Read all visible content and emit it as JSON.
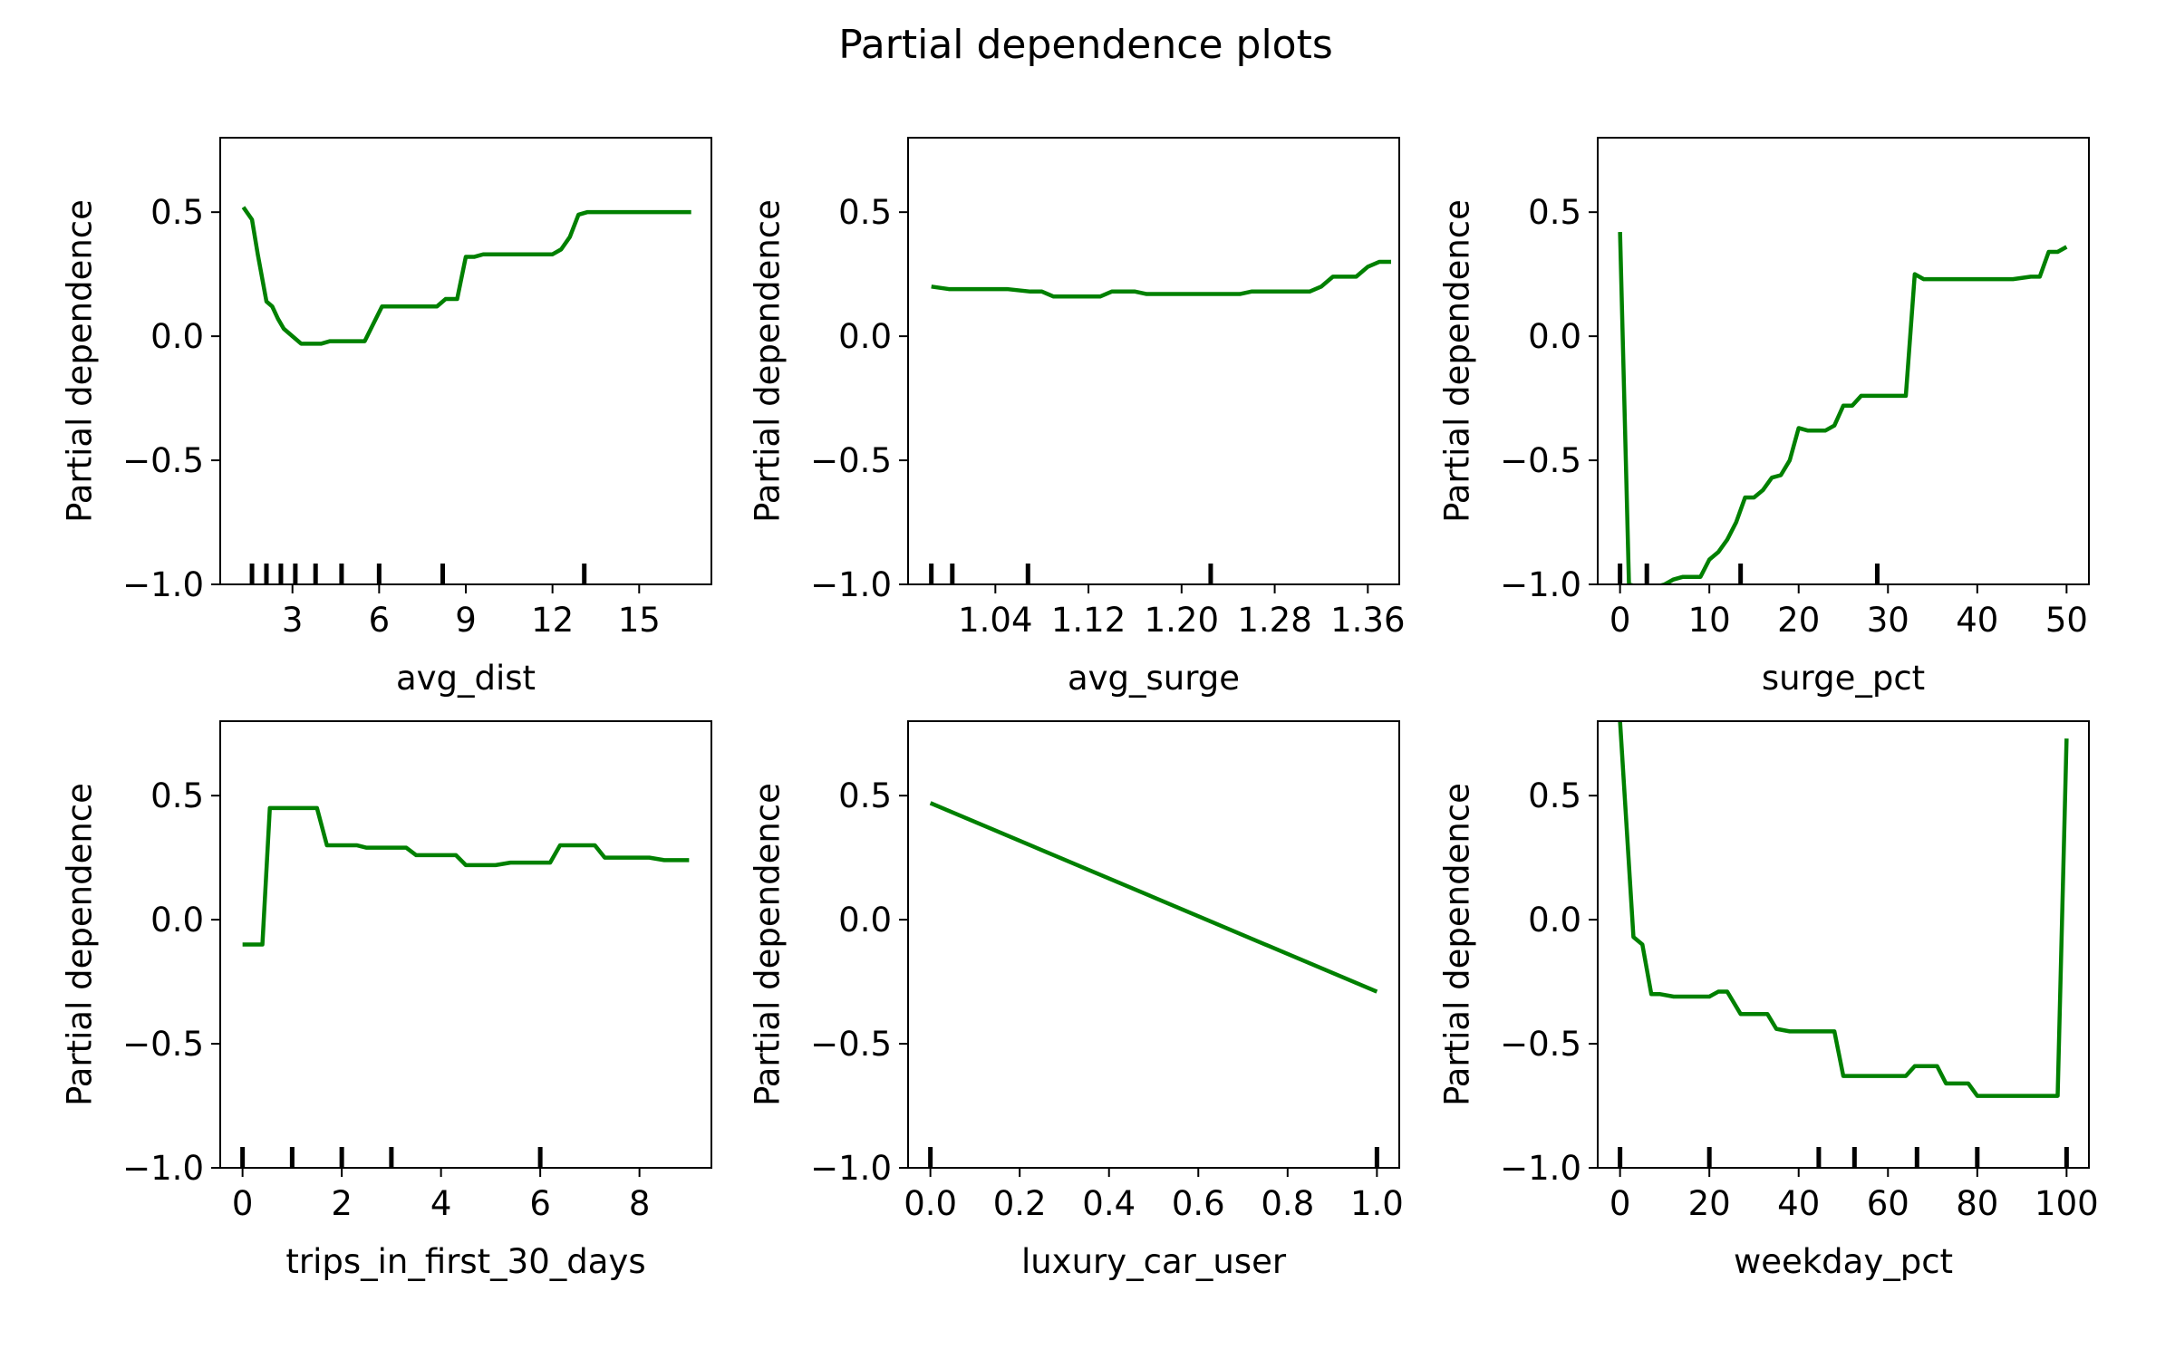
{
  "title": "Partial dependence plots",
  "line_color": "#008000",
  "chart_data": [
    {
      "type": "line",
      "xlabel": "avg_dist",
      "ylabel": "Partial dependence",
      "xlim": [
        0.5,
        17.5
      ],
      "ylim": [
        -1.0,
        0.8
      ],
      "xticks": [
        3,
        6,
        9,
        12,
        15
      ],
      "xtick_labels": [
        "3",
        "6",
        "9",
        "12",
        "15"
      ],
      "yticks": [
        -1.0,
        -0.5,
        0.0,
        0.5
      ],
      "ytick_labels": [
        "−1.0",
        "−0.5",
        "0.0",
        "0.5"
      ],
      "deciles": [
        1.6,
        2.1,
        2.6,
        3.1,
        3.8,
        4.7,
        6.0,
        8.2,
        13.1
      ],
      "x": [
        1.3,
        1.6,
        1.8,
        2.1,
        2.3,
        2.5,
        2.7,
        3.0,
        3.3,
        3.6,
        4.0,
        4.3,
        4.6,
        5.0,
        5.5,
        5.8,
        6.1,
        6.4,
        7.0,
        8.0,
        8.3,
        8.7,
        9.0,
        9.3,
        9.6,
        10.0,
        11.0,
        12.0,
        12.3,
        12.6,
        12.9,
        13.2,
        14.0,
        15.0,
        16.0,
        16.8
      ],
      "y": [
        0.52,
        0.47,
        0.33,
        0.14,
        0.12,
        0.07,
        0.03,
        0.0,
        -0.03,
        -0.03,
        -0.03,
        -0.02,
        -0.02,
        -0.02,
        -0.02,
        0.05,
        0.12,
        0.12,
        0.12,
        0.12,
        0.15,
        0.15,
        0.32,
        0.32,
        0.33,
        0.33,
        0.33,
        0.33,
        0.35,
        0.4,
        0.49,
        0.5,
        0.5,
        0.5,
        0.5,
        0.5
      ]
    },
    {
      "type": "line",
      "xlabel": "avg_surge",
      "ylabel": "Partial dependence",
      "xlim": [
        0.965,
        1.387
      ],
      "ylim": [
        -1.0,
        0.8
      ],
      "xticks": [
        1.04,
        1.12,
        1.2,
        1.28,
        1.36
      ],
      "xtick_labels": [
        "1.04",
        "1.12",
        "1.20",
        "1.28",
        "1.36"
      ],
      "yticks": [
        -1.0,
        -0.5,
        0.0,
        0.5
      ],
      "ytick_labels": [
        "−1.0",
        "−0.5",
        "0.0",
        "0.5"
      ],
      "deciles": [
        0.985,
        1.003,
        1.068,
        1.225
      ],
      "x": [
        0.985,
        1.0,
        1.02,
        1.05,
        1.07,
        1.08,
        1.09,
        1.1,
        1.12,
        1.13,
        1.14,
        1.15,
        1.16,
        1.17,
        1.18,
        1.2,
        1.22,
        1.24,
        1.25,
        1.26,
        1.28,
        1.3,
        1.31,
        1.32,
        1.33,
        1.34,
        1.35,
        1.36,
        1.37,
        1.38
      ],
      "y": [
        0.2,
        0.19,
        0.19,
        0.19,
        0.18,
        0.18,
        0.16,
        0.16,
        0.16,
        0.16,
        0.18,
        0.18,
        0.18,
        0.17,
        0.17,
        0.17,
        0.17,
        0.17,
        0.17,
        0.18,
        0.18,
        0.18,
        0.18,
        0.2,
        0.24,
        0.24,
        0.24,
        0.28,
        0.3,
        0.3
      ]
    },
    {
      "type": "line",
      "xlabel": "surge_pct",
      "ylabel": "Partial dependence",
      "xlim": [
        -2.5,
        52.5
      ],
      "ylim": [
        -1.0,
        0.8
      ],
      "xticks": [
        0,
        10,
        20,
        30,
        40,
        50
      ],
      "xtick_labels": [
        "0",
        "10",
        "20",
        "30",
        "40",
        "50"
      ],
      "yticks": [
        -1.0,
        -0.5,
        0.0,
        0.5
      ],
      "ytick_labels": [
        "−1.0",
        "−0.5",
        "0.0",
        "0.5"
      ],
      "deciles": [
        0.0,
        3.0,
        13.5,
        28.8
      ],
      "x": [
        0.0,
        1.0,
        2.0,
        4.0,
        5.0,
        6.0,
        7.0,
        8.0,
        9.0,
        10.0,
        11.0,
        12.0,
        13.0,
        14.0,
        15.0,
        16.0,
        17.0,
        18.0,
        19.0,
        20.0,
        21.0,
        22.0,
        23.0,
        24.0,
        25.0,
        26.0,
        27.0,
        28.0,
        29.0,
        30.0,
        31.0,
        32.0,
        33.0,
        34.0,
        36.0,
        38.0,
        40.0,
        42.0,
        44.0,
        46.0,
        47.0,
        48.0,
        49.0,
        50.0
      ],
      "y": [
        0.42,
        -1.0,
        -1.01,
        -1.01,
        -1.0,
        -0.98,
        -0.97,
        -0.97,
        -0.97,
        -0.9,
        -0.87,
        -0.82,
        -0.75,
        -0.65,
        -0.65,
        -0.62,
        -0.57,
        -0.56,
        -0.5,
        -0.37,
        -0.38,
        -0.38,
        -0.38,
        -0.36,
        -0.28,
        -0.28,
        -0.24,
        -0.24,
        -0.24,
        -0.24,
        -0.24,
        -0.24,
        0.25,
        0.23,
        0.23,
        0.23,
        0.23,
        0.23,
        0.23,
        0.24,
        0.24,
        0.34,
        0.34,
        0.36
      ]
    },
    {
      "type": "line",
      "xlabel": "trips_in_first_30_days",
      "ylabel": "Partial dependence",
      "xlim": [
        -0.45,
        9.45
      ],
      "ylim": [
        -1.0,
        0.8
      ],
      "xticks": [
        0,
        2,
        4,
        6,
        8
      ],
      "xtick_labels": [
        "0",
        "2",
        "4",
        "6",
        "8"
      ],
      "yticks": [
        -1.0,
        -0.5,
        0.0,
        0.5
      ],
      "ytick_labels": [
        "−1.0",
        "−0.5",
        "0.0",
        "0.5"
      ],
      "deciles": [
        0,
        1,
        2,
        3,
        6
      ],
      "x": [
        0.0,
        0.4,
        0.55,
        1.0,
        1.5,
        1.7,
        1.9,
        2.3,
        2.5,
        2.7,
        3.0,
        3.3,
        3.5,
        3.7,
        4.0,
        4.3,
        4.5,
        4.9,
        5.1,
        5.4,
        5.8,
        6.0,
        6.2,
        6.4,
        6.6,
        6.8,
        7.1,
        7.3,
        7.5,
        7.8,
        8.0,
        8.2,
        8.5,
        8.7,
        9.0
      ],
      "y": [
        -0.1,
        -0.1,
        0.45,
        0.45,
        0.45,
        0.3,
        0.3,
        0.3,
        0.29,
        0.29,
        0.29,
        0.29,
        0.26,
        0.26,
        0.26,
        0.26,
        0.22,
        0.22,
        0.22,
        0.23,
        0.23,
        0.23,
        0.23,
        0.3,
        0.3,
        0.3,
        0.3,
        0.25,
        0.25,
        0.25,
        0.25,
        0.25,
        0.24,
        0.24,
        0.24
      ]
    },
    {
      "type": "line",
      "xlabel": "luxury_car_user",
      "ylabel": "Partial dependence",
      "xlim": [
        -0.05,
        1.05
      ],
      "ylim": [
        -1.0,
        0.8
      ],
      "xticks": [
        0.0,
        0.2,
        0.4,
        0.6,
        0.8,
        1.0
      ],
      "xtick_labels": [
        "0.0",
        "0.2",
        "0.4",
        "0.6",
        "0.8",
        "1.0"
      ],
      "yticks": [
        -1.0,
        -0.5,
        0.0,
        0.5
      ],
      "ytick_labels": [
        "−1.0",
        "−0.5",
        "0.0",
        "0.5"
      ],
      "deciles": [
        0.0,
        1.0
      ],
      "x": [
        0.0,
        1.0
      ],
      "y": [
        0.47,
        -0.29
      ]
    },
    {
      "type": "line",
      "xlabel": "weekday_pct",
      "ylabel": "Partial dependence",
      "xlim": [
        -5,
        105
      ],
      "ylim": [
        -1.0,
        0.8
      ],
      "xticks": [
        0,
        20,
        40,
        60,
        80,
        100
      ],
      "xtick_labels": [
        "0",
        "20",
        "40",
        "60",
        "80",
        "100"
      ],
      "yticks": [
        -1.0,
        -0.5,
        0.0,
        0.5
      ],
      "ytick_labels": [
        "−1.0",
        "−0.5",
        "0.0",
        "0.5"
      ],
      "deciles": [
        0,
        20,
        44.5,
        52.5,
        66.5,
        80,
        100
      ],
      "x": [
        0.0,
        3.0,
        5.0,
        7.0,
        9.0,
        12.0,
        15.0,
        18.0,
        20.0,
        22.0,
        24.0,
        27.0,
        30.0,
        33.0,
        35.0,
        38.0,
        42.0,
        45.0,
        47.0,
        48.0,
        50.0,
        55.0,
        60.0,
        62.0,
        64.0,
        66.0,
        70.0,
        71.0,
        73.0,
        76.0,
        78.0,
        80.0,
        86.0,
        90.0,
        96.0,
        98.0,
        100.0
      ],
      "y": [
        0.8,
        -0.07,
        -0.1,
        -0.3,
        -0.3,
        -0.31,
        -0.31,
        -0.31,
        -0.31,
        -0.29,
        -0.29,
        -0.38,
        -0.38,
        -0.38,
        -0.44,
        -0.45,
        -0.45,
        -0.45,
        -0.45,
        -0.45,
        -0.63,
        -0.63,
        -0.63,
        -0.63,
        -0.63,
        -0.59,
        -0.59,
        -0.59,
        -0.66,
        -0.66,
        -0.66,
        -0.71,
        -0.71,
        -0.71,
        -0.71,
        -0.71,
        0.73
      ]
    }
  ]
}
